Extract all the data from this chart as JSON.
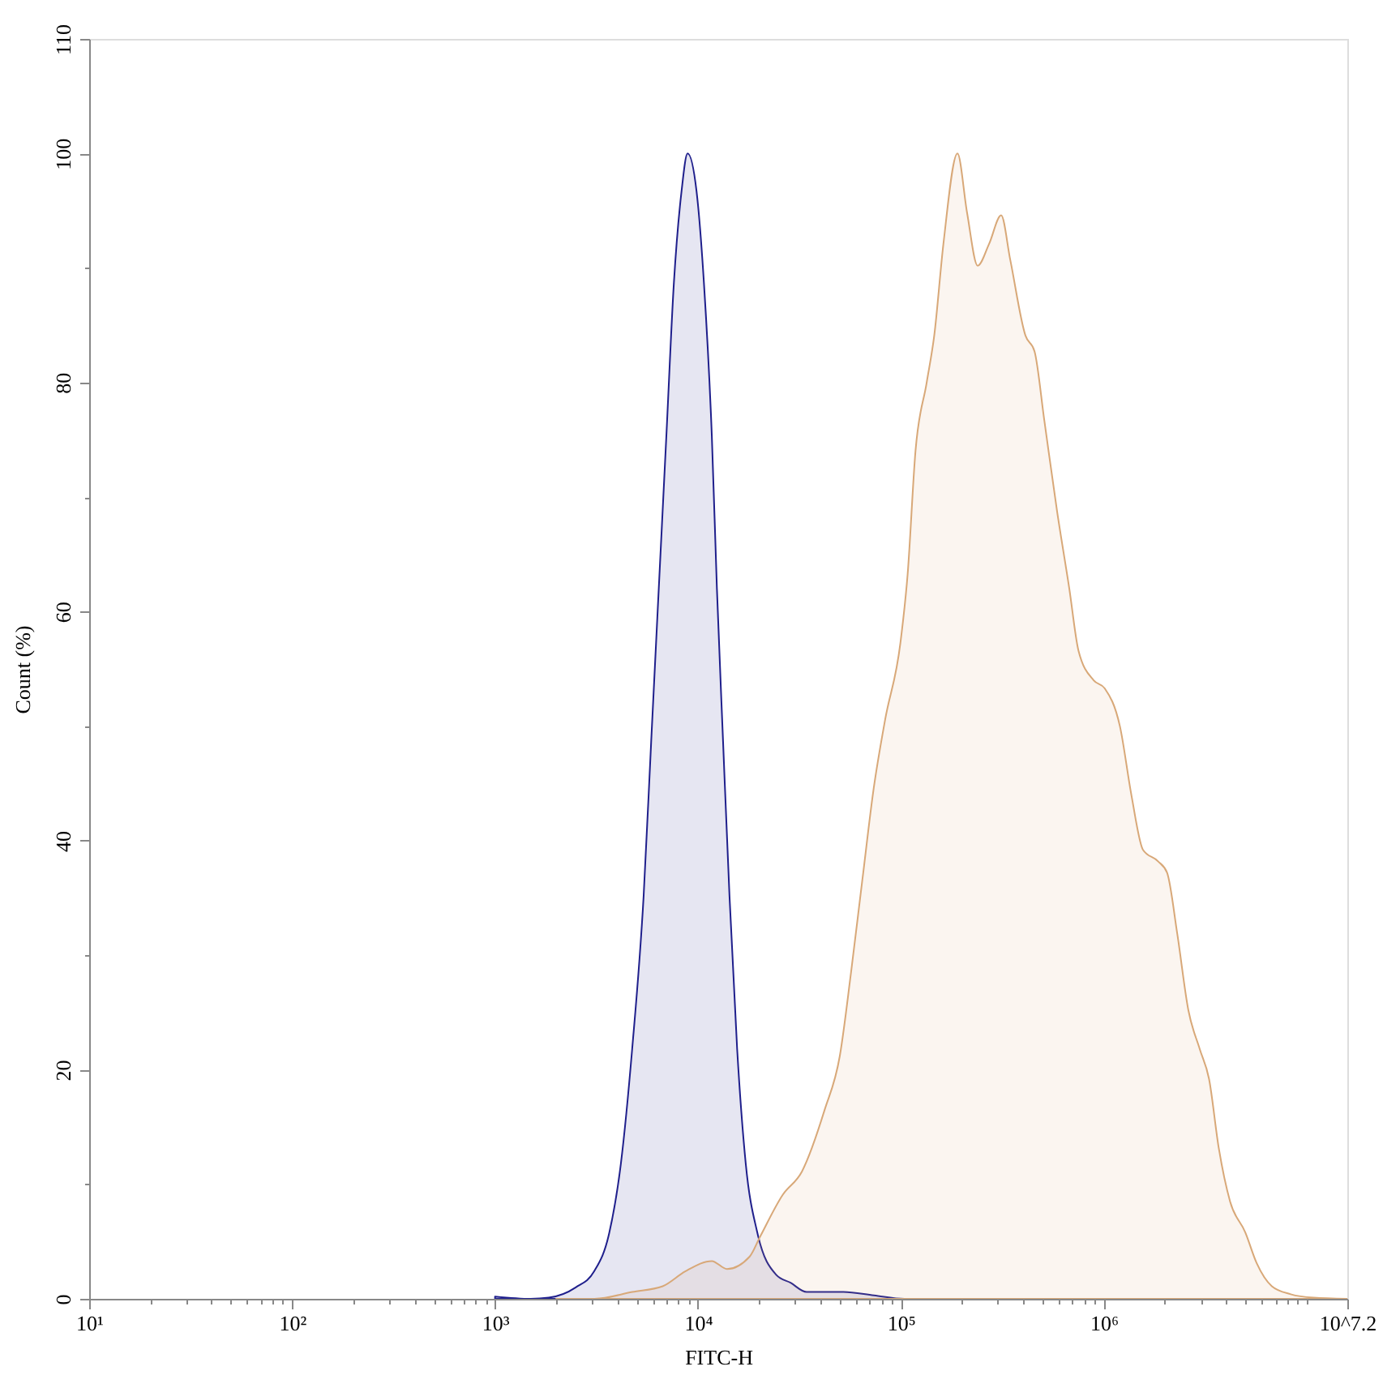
{
  "chart_data": {
    "type": "area",
    "xlabel": "FITC-H",
    "ylabel": "Count (%)",
    "log": "x",
    "xlim": [
      10,
      15848931.92
    ],
    "ylim": [
      0,
      110
    ],
    "xticks": [
      {
        "value": 10,
        "label": "10¹"
      },
      {
        "value": 20,
        "label": null
      },
      {
        "value": 30,
        "label": null
      },
      {
        "value": 40,
        "label": null
      },
      {
        "value": 50,
        "label": null
      },
      {
        "value": 60,
        "label": null
      },
      {
        "value": 70,
        "label": null
      },
      {
        "value": 80,
        "label": null
      },
      {
        "value": 90,
        "label": null
      },
      {
        "value": 100,
        "label": "10²"
      },
      {
        "value": 200,
        "label": null
      },
      {
        "value": 300,
        "label": null
      },
      {
        "value": 400,
        "label": null
      },
      {
        "value": 500,
        "label": null
      },
      {
        "value": 600,
        "label": null
      },
      {
        "value": 700,
        "label": null
      },
      {
        "value": 800,
        "label": null
      },
      {
        "value": 900,
        "label": null
      },
      {
        "value": 1000,
        "label": "10³"
      },
      {
        "value": 2000,
        "label": null
      },
      {
        "value": 3000,
        "label": null
      },
      {
        "value": 4000,
        "label": null
      },
      {
        "value": 5000,
        "label": null
      },
      {
        "value": 6000,
        "label": null
      },
      {
        "value": 7000,
        "label": null
      },
      {
        "value": 8000,
        "label": null
      },
      {
        "value": 9000,
        "label": null
      },
      {
        "value": 10000,
        "label": "10⁴"
      },
      {
        "value": 20000,
        "label": null
      },
      {
        "value": 30000,
        "label": null
      },
      {
        "value": 40000,
        "label": null
      },
      {
        "value": 50000,
        "label": null
      },
      {
        "value": 60000,
        "label": null
      },
      {
        "value": 70000,
        "label": null
      },
      {
        "value": 80000,
        "label": null
      },
      {
        "value": 90000,
        "label": null
      },
      {
        "value": 100000,
        "label": "10⁵"
      },
      {
        "value": 200000,
        "label": null
      },
      {
        "value": 300000,
        "label": null
      },
      {
        "value": 400000,
        "label": null
      },
      {
        "value": 500000,
        "label": null
      },
      {
        "value": 600000,
        "label": null
      },
      {
        "value": 700000,
        "label": null
      },
      {
        "value": 800000,
        "label": null
      },
      {
        "value": 900000,
        "label": null
      },
      {
        "value": 1000000,
        "label": "10⁶"
      },
      {
        "value": 2000000,
        "label": null
      },
      {
        "value": 3000000,
        "label": null
      },
      {
        "value": 4000000,
        "label": null
      },
      {
        "value": 5000000,
        "label": null
      },
      {
        "value": 6000000,
        "label": null
      },
      {
        "value": 7000000,
        "label": null
      },
      {
        "value": 8000000,
        "label": null
      },
      {
        "value": 9000000,
        "label": null
      },
      {
        "value": 10000000,
        "label": null
      },
      {
        "value": 15848931.92,
        "label": "10^7.2"
      }
    ],
    "yticks": [
      0,
      {
        "value": 10,
        "label": null
      },
      20,
      {
        "value": 30,
        "label": null
      },
      40,
      {
        "value": 50,
        "label": null
      },
      60,
      {
        "value": 70,
        "label": null
      },
      80,
      {
        "value": 90,
        "label": null
      },
      100,
      110
    ],
    "series": [
      {
        "color": "#1f1f8c",
        "x": [
          1000,
          1500,
          1840,
          2500,
          3080,
          3660,
          4170,
          4740,
          5400,
          5880,
          6410,
          6990,
          7610,
          8300,
          8890,
          9840,
          10700,
          11700,
          12400,
          13300,
          14300,
          15600,
          17200,
          19600,
          24300,
          28600,
          34300,
          52100,
          73600,
          104000,
          1000000
        ],
        "values": [
          0.2,
          0,
          0.1,
          1.0,
          2.4,
          5.8,
          11.8,
          21.8,
          35.2,
          48.6,
          62,
          75.4,
          88.7,
          96.7,
          100,
          96.7,
          88.7,
          75.4,
          62,
          48.6,
          35.2,
          21.8,
          11.8,
          5.8,
          2.1,
          1.4,
          0.6,
          0.6,
          0.3,
          0,
          0
        ]
      },
      {
        "color": "#d8a878",
        "x": [
          2000,
          3090,
          4750,
          6700,
          8660,
          11700,
          13900,
          18000,
          20200,
          26200,
          32500,
          42100,
          50000,
          56800,
          64600,
          73500,
          83700,
          99500,
          108000,
          118000,
          134000,
          146000,
          162000,
          190000,
          212000,
          239000,
          272000,
          312000,
          346000,
          411000,
          456000,
          509000,
          589000,
          676000,
          750000,
          891000,
          1010000,
          1200000,
          1370000,
          1560000,
          1850000,
          2050000,
          2300000,
          2610000,
          2970000,
          3300000,
          3690000,
          4190000,
          4980000,
          5670000,
          6730000,
          8340000,
          10800000,
          15800000
        ],
        "values": [
          0,
          0,
          0.6,
          1.1,
          2.4,
          3.3,
          2.6,
          3.7,
          5.4,
          9.1,
          11.1,
          16.5,
          21.2,
          28.5,
          36.6,
          44.6,
          50.6,
          57.3,
          63.3,
          74,
          80,
          84.1,
          92.1,
          100,
          94.8,
          90.2,
          92.1,
          94.6,
          90.7,
          84.1,
          82.7,
          76.7,
          68.7,
          62,
          56.6,
          54,
          53.3,
          50,
          43.9,
          39.2,
          38.2,
          37.2,
          31.9,
          25.2,
          21.8,
          19.2,
          13.1,
          8.5,
          5.8,
          3.1,
          1.1,
          0.4,
          0.1,
          0
        ]
      }
    ]
  }
}
